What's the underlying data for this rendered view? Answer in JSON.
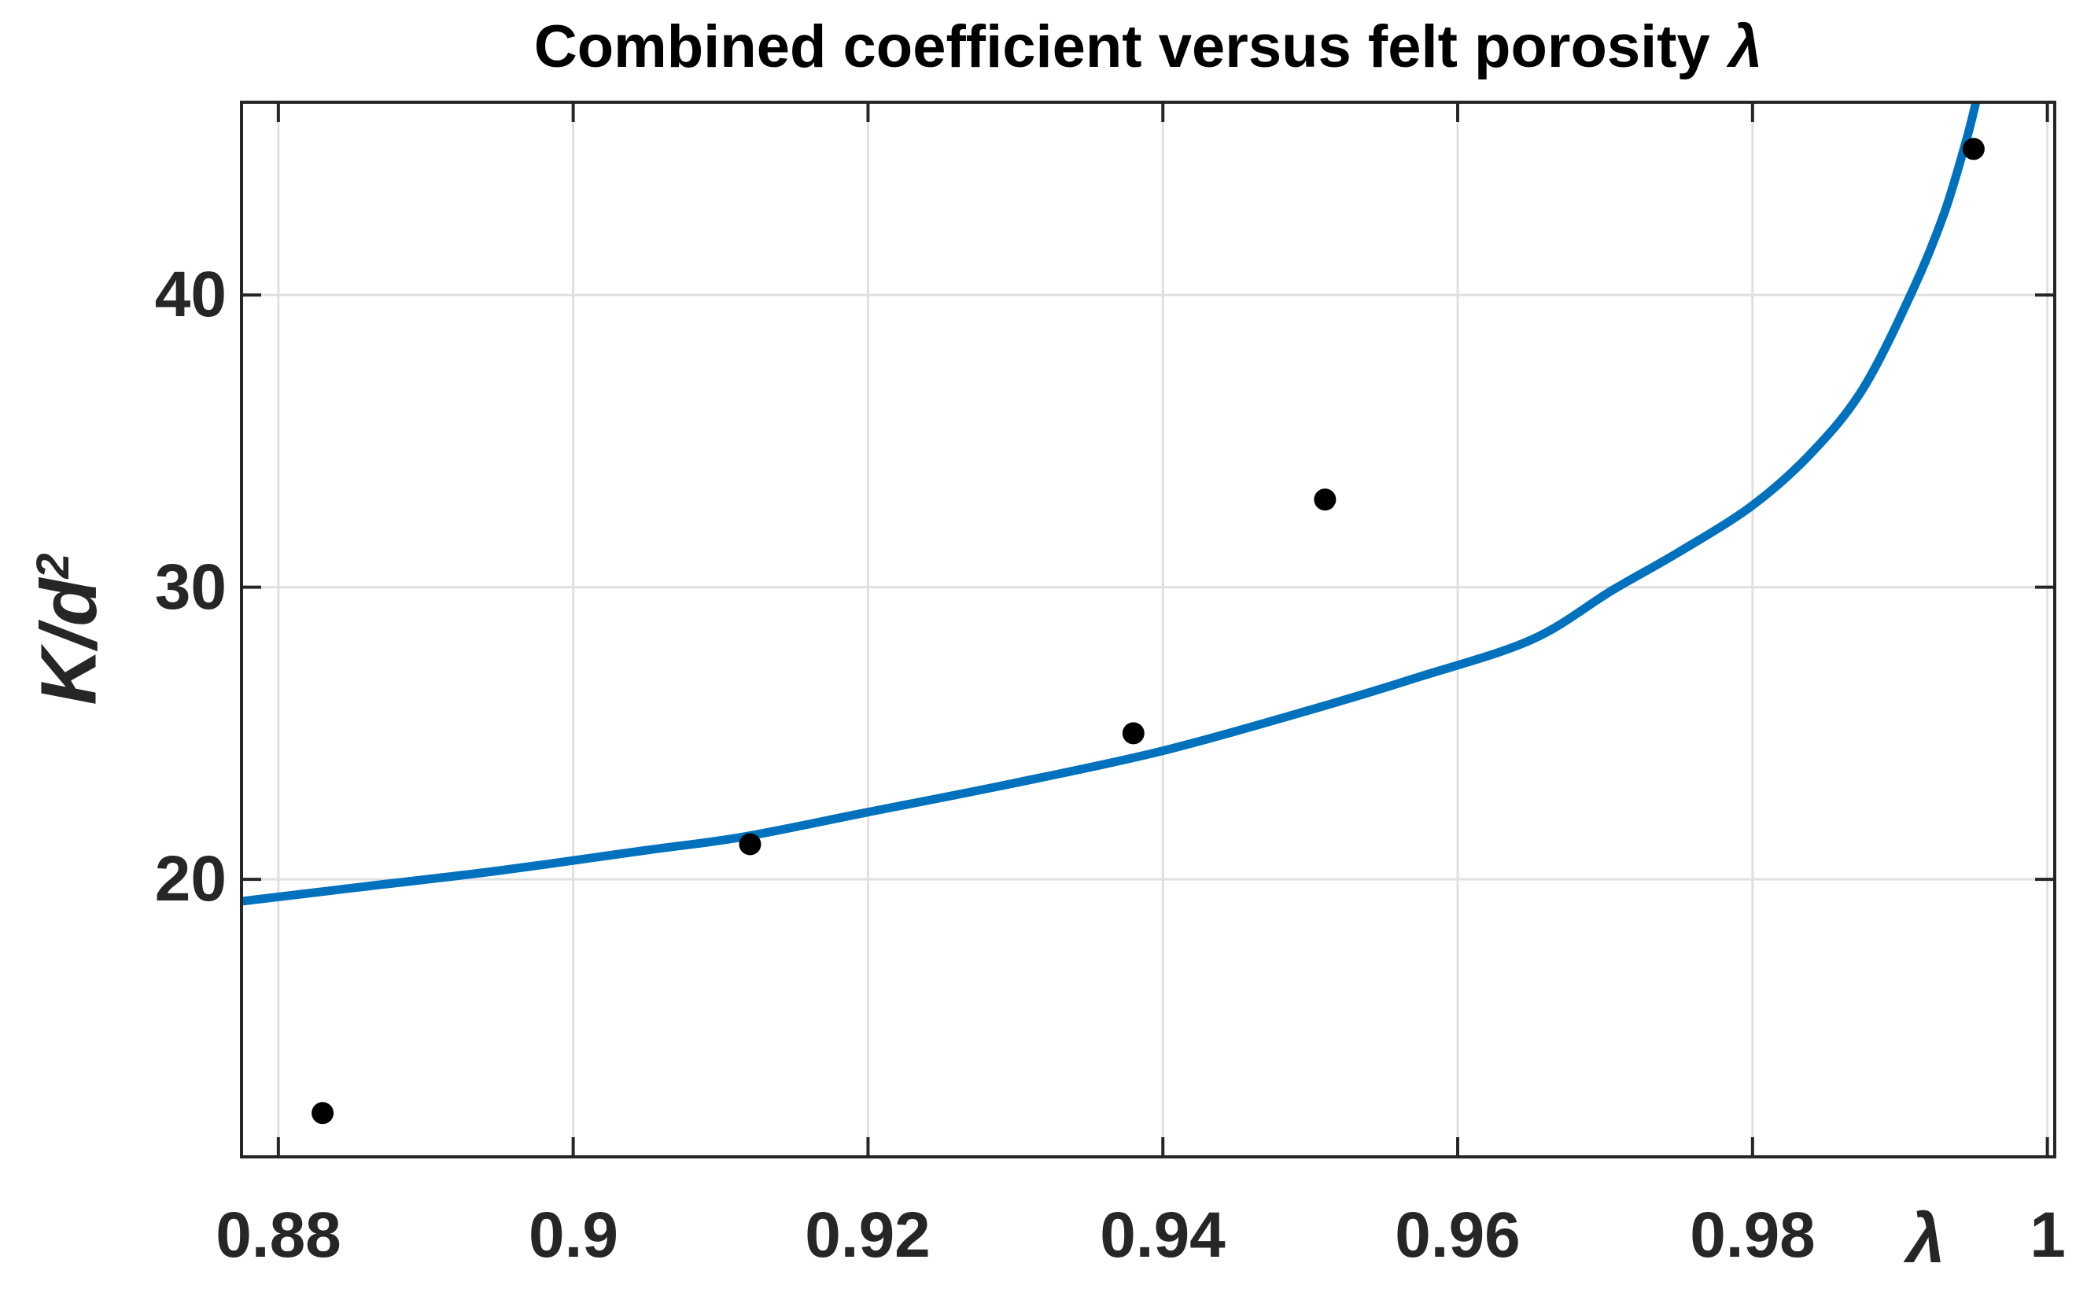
{
  "chart_data": {
    "type": "line+scatter",
    "title": {
      "text": "Combined coefficient versus felt porosity",
      "symbol": "λ"
    },
    "xlabel": "λ",
    "ylabel": {
      "base": "K/d",
      "superscript": "2"
    },
    "xlim": [
      0.8775,
      1.0005
    ],
    "ylim": [
      10.5,
      46.6
    ],
    "grid": true,
    "legend": "none",
    "x_ticks": {
      "values": [
        0.88,
        0.9,
        0.92,
        0.94,
        0.96,
        0.98,
        1
      ],
      "labels": [
        "0.88",
        "0.9",
        "0.92",
        "0.94",
        "0.96",
        "0.98",
        "1"
      ]
    },
    "y_ticks": {
      "values": [
        20,
        30,
        40
      ],
      "labels": [
        "20",
        "30",
        "40"
      ]
    },
    "series": [
      {
        "name": "model-curve",
        "type": "line",
        "color": "#0072BD",
        "stroke_width": 11,
        "points": [
          [
            0.8775,
            19.25
          ],
          [
            0.885,
            19.7
          ],
          [
            0.895,
            20.3
          ],
          [
            0.905,
            21.0
          ],
          [
            0.9115,
            21.45
          ],
          [
            0.92,
            22.3
          ],
          [
            0.93,
            23.3
          ],
          [
            0.94,
            24.4
          ],
          [
            0.95,
            25.8
          ],
          [
            0.9572,
            26.9
          ],
          [
            0.965,
            28.2
          ],
          [
            0.9705,
            29.9
          ],
          [
            0.975,
            31.2
          ],
          [
            0.98,
            32.8
          ],
          [
            0.984,
            34.6
          ],
          [
            0.9875,
            36.8
          ],
          [
            0.9909,
            40.2
          ],
          [
            0.993,
            42.8
          ],
          [
            0.9945,
            45.3
          ],
          [
            0.9952,
            46.7
          ]
        ]
      },
      {
        "name": "experimental-points",
        "type": "scatter",
        "color": "#000000",
        "marker_radius": 14,
        "points": [
          [
            0.883,
            12.0
          ],
          [
            0.912,
            21.2
          ],
          [
            0.938,
            25.0
          ],
          [
            0.951,
            33.0
          ],
          [
            0.995,
            45.0
          ]
        ]
      }
    ],
    "colors": {
      "axis": "#262626",
      "grid": "#e0e0e0",
      "title_text": "#000000",
      "tick_text": "#262626"
    },
    "tick_length": 25
  }
}
